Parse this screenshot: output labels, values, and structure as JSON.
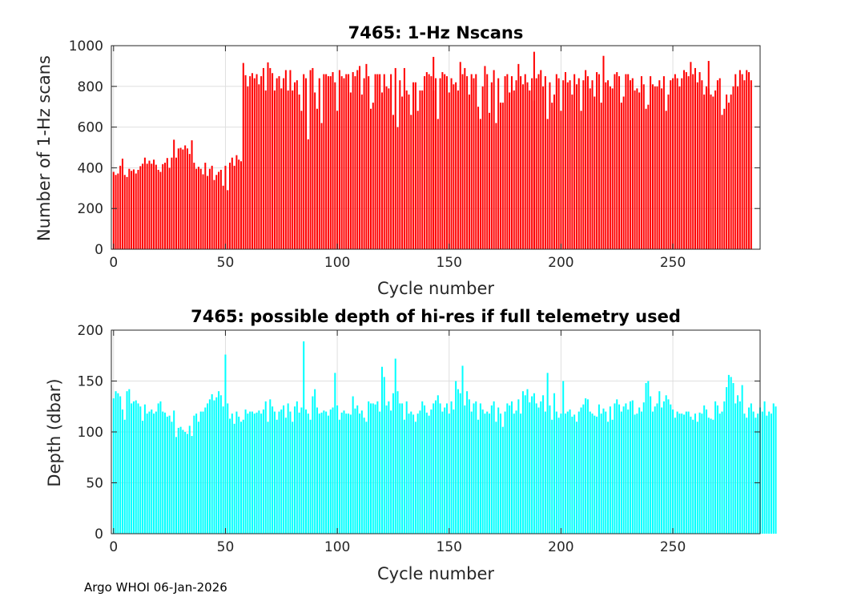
{
  "footer": "Argo WHOI 06-Jan-2026",
  "chart_data": [
    {
      "type": "bar",
      "title": "7465: 1-Hz Nscans",
      "xlabel": "Cycle number",
      "ylabel": "Number of 1-Hz scans",
      "xlim": [
        -1,
        289
      ],
      "ylim": [
        0,
        1000
      ],
      "xticks": [
        0,
        50,
        100,
        150,
        200,
        250
      ],
      "yticks": [
        0,
        200,
        400,
        600,
        800,
        1000
      ],
      "grid": true,
      "color": "#ff0000",
      "x_start": 0,
      "values": [
        380,
        365,
        372,
        410,
        445,
        365,
        355,
        395,
        385,
        392,
        372,
        390,
        408,
        420,
        450,
        420,
        435,
        420,
        440,
        415,
        390,
        380,
        418,
        425,
        448,
        400,
        450,
        538,
        450,
        495,
        498,
        490,
        510,
        495,
        468,
        535,
        425,
        395,
        405,
        395,
        368,
        425,
        360,
        395,
        410,
        340,
        365,
        380,
        390,
        312,
        410,
        290,
        425,
        450,
        410,
        462,
        440,
        432,
        915,
        855,
        800,
        850,
        865,
        840,
        860,
        810,
        850,
        890,
        780,
        918,
        890,
        865,
        780,
        840,
        850,
        790,
        840,
        880,
        780,
        880,
        780,
        820,
        830,
        760,
        680,
        860,
        840,
        540,
        880,
        890,
        770,
        690,
        840,
        620,
        860,
        860,
        850,
        850,
        870,
        820,
        680,
        880,
        850,
        840,
        860,
        860,
        770,
        870,
        850,
        880,
        900,
        760,
        840,
        910,
        850,
        690,
        720,
        860,
        860,
        860,
        770,
        860,
        800,
        790,
        860,
        660,
        890,
        600,
        830,
        750,
        890,
        780,
        760,
        660,
        820,
        820,
        680,
        780,
        780,
        850,
        870,
        860,
        850,
        780,
        840,
        640,
        840,
        870,
        860,
        850,
        770,
        840,
        810,
        820,
        780,
        920,
        860,
        890,
        850,
        760,
        860,
        840,
        860,
        700,
        640,
        800,
        900,
        860,
        670,
        820,
        880,
        620,
        840,
        720,
        720,
        850,
        860,
        770,
        850,
        780,
        830,
        910,
        850,
        810,
        860,
        820,
        780,
        840,
        730,
        840,
        860,
        880,
        800,
        850,
        640,
        820,
        720,
        760,
        860,
        840,
        680,
        830,
        870,
        820,
        830,
        760,
        860,
        810,
        840,
        680,
        830,
        880,
        850,
        790,
        830,
        750,
        870,
        860,
        720,
        790,
        820,
        830,
        800,
        790,
        860,
        870,
        850,
        720,
        750,
        860,
        860,
        830,
        840,
        780,
        790,
        770,
        850,
        810,
        690,
        710,
        850,
        810,
        800,
        800,
        830,
        790,
        850,
        680,
        760,
        830,
        840,
        860,
        840,
        800,
        840,
        880,
        870,
        850,
        920,
        860,
        890,
        820,
        870,
        830,
        760,
        800,
        790,
        760,
        750,
        780,
        830,
        840,
        660,
        690,
        760,
        720,
        760,
        800,
        860,
        800,
        880,
        860,
        830,
        880,
        870,
        830
      ],
      "extra_bars": [
        [
          143,
          945
        ],
        [
          188,
          970
        ],
        [
          219,
          950
        ],
        [
          266,
          925
        ]
      ]
    },
    {
      "type": "bar",
      "title": "7465: possible depth of hi-res if full telemetry used",
      "xlabel": "Cycle number",
      "ylabel": "Depth (dbar)",
      "xlim": [
        -1,
        289
      ],
      "ylim": [
        0,
        200
      ],
      "xticks": [
        0,
        50,
        100,
        150,
        200,
        250
      ],
      "yticks": [
        0,
        50,
        100,
        150,
        200
      ],
      "grid": true,
      "color": "#00ffff",
      "x_start": 0,
      "values": [
        133,
        140,
        138,
        135,
        122,
        112,
        140,
        142,
        128,
        130,
        131,
        128,
        125,
        111,
        127,
        118,
        120,
        122,
        118,
        120,
        128,
        130,
        120,
        119,
        115,
        116,
        110,
        121,
        95,
        104,
        105,
        102,
        100,
        98,
        106,
        96,
        116,
        118,
        110,
        120,
        120,
        124,
        128,
        132,
        137,
        131,
        134,
        140,
        136,
        125,
        176,
        128,
        113,
        118,
        108,
        120,
        115,
        110,
        112,
        122,
        118,
        120,
        120,
        118,
        119,
        121,
        118,
        122,
        130,
        110,
        132,
        125,
        120,
        112,
        120,
        122,
        126,
        114,
        128,
        120,
        110,
        125,
        130,
        119,
        124,
        189,
        122,
        118,
        112,
        135,
        142,
        124,
        118,
        119,
        121,
        120,
        116,
        122,
        124,
        158,
        126,
        112,
        119,
        121,
        118,
        118,
        117,
        135,
        123,
        126,
        118,
        121,
        114,
        110,
        130,
        128,
        128,
        127,
        130,
        120,
        164,
        154,
        126,
        130,
        121,
        138,
        172,
        140,
        128,
        128,
        112,
        130,
        118,
        120,
        117,
        110,
        118,
        121,
        130,
        126,
        119,
        116,
        122,
        128,
        131,
        136,
        128,
        120,
        124,
        128,
        118,
        130,
        122,
        150,
        142,
        138,
        165,
        126,
        140,
        132,
        120,
        128,
        130,
        112,
        128,
        122,
        118,
        120,
        118,
        126,
        130,
        110,
        124,
        118,
        105,
        120,
        128,
        126,
        130,
        118,
        121,
        132,
        118,
        140,
        136,
        142,
        129,
        135,
        138,
        128,
        124,
        130,
        136,
        120,
        158,
        126,
        112,
        138,
        120,
        114,
        118,
        150,
        118,
        120,
        122,
        115,
        117,
        110,
        120,
        124,
        127,
        133,
        132,
        120,
        118,
        116,
        115,
        127,
        118,
        123,
        120,
        110,
        125,
        112,
        128,
        132,
        127,
        120,
        125,
        128,
        122,
        130,
        131,
        117,
        118,
        124,
        120,
        129,
        148,
        150,
        135,
        120,
        125,
        128,
        140,
        124,
        130,
        136,
        132,
        127,
        122,
        114,
        120,
        118,
        118,
        117,
        120,
        120,
        115,
        112,
        118,
        110,
        119,
        118,
        126,
        122,
        114,
        113,
        112,
        130,
        126,
        118,
        120,
        130,
        144,
        156,
        154,
        148,
        128,
        136,
        130,
        146,
        118,
        114,
        124,
        128,
        120,
        114,
        118,
        124,
        120,
        130,
        116,
        120,
        118,
        128,
        125
      ],
      "extra_bars": []
    }
  ]
}
